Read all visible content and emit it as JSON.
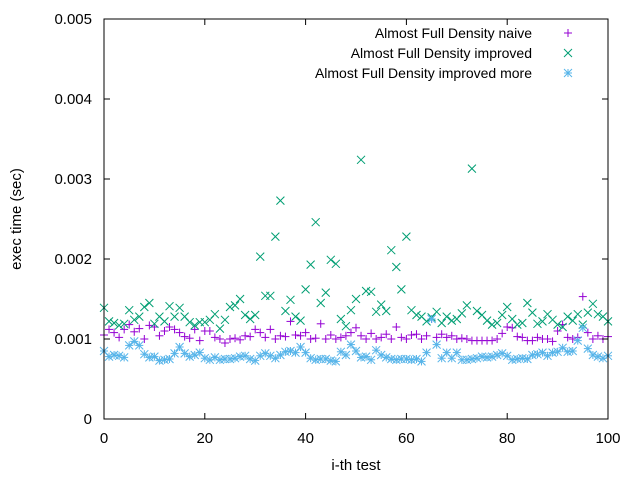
{
  "chart_data": {
    "type": "scatter",
    "title": "",
    "xlabel": "i-th test",
    "ylabel": "exec time (sec)",
    "xlim": [
      0,
      100
    ],
    "ylim": [
      0,
      0.005
    ],
    "x_ticks": [
      "0",
      "20",
      "40",
      "60",
      "80",
      "100"
    ],
    "y_ticks": [
      "0",
      "0.001",
      "0.002",
      "0.003",
      "0.004",
      "0.005"
    ],
    "x_tick_values": [
      0,
      20,
      40,
      60,
      80,
      100
    ],
    "y_tick_values": [
      0,
      0.001,
      0.002,
      0.003,
      0.004,
      0.005
    ],
    "grid": false,
    "legend_position": "top-right",
    "series": [
      {
        "name": "Almost Full Density naive",
        "marker": "plus",
        "color": "#9400d3",
        "x": [
          0,
          1,
          2,
          3,
          4,
          5,
          6,
          7,
          8,
          9,
          10,
          11,
          12,
          13,
          14,
          15,
          16,
          17,
          18,
          19,
          20,
          21,
          22,
          23,
          24,
          25,
          26,
          27,
          28,
          29,
          30,
          31,
          32,
          33,
          34,
          35,
          36,
          37,
          38,
          39,
          40,
          41,
          42,
          43,
          44,
          45,
          46,
          47,
          48,
          49,
          50,
          51,
          52,
          53,
          54,
          55,
          56,
          57,
          58,
          59,
          60,
          61,
          62,
          63,
          64,
          65,
          66,
          67,
          68,
          69,
          70,
          71,
          72,
          73,
          74,
          75,
          76,
          77,
          78,
          79,
          80,
          81,
          82,
          83,
          84,
          85,
          86,
          87,
          88,
          89,
          90,
          91,
          92,
          93,
          94,
          95,
          96,
          97,
          98,
          99,
          100
        ],
        "y": [
          0.00105,
          0.00112,
          0.00108,
          0.00102,
          0.00112,
          0.00118,
          0.00109,
          0.00113,
          0.001,
          0.00117,
          0.00115,
          0.00104,
          0.0011,
          0.00115,
          0.00112,
          0.00108,
          0.00103,
          0.00101,
          0.00112,
          0.00098,
          0.0011,
          0.0011,
          0.00102,
          0.001,
          0.00095,
          0.001,
          0.00101,
          0.00099,
          0.00104,
          0.00103,
          0.00112,
          0.00108,
          0.00102,
          0.00112,
          0.001,
          0.00104,
          0.00103,
          0.00122,
          0.00105,
          0.00104,
          0.00108,
          0.001,
          0.00101,
          0.00119,
          0.001,
          0.00105,
          0.001,
          0.00102,
          0.00104,
          0.00108,
          0.00114,
          0.00104,
          0.001,
          0.00107,
          0.001,
          0.00102,
          0.00106,
          0.001,
          0.00115,
          0.00102,
          0.001,
          0.00105,
          0.00106,
          0.001,
          0.00104,
          0.00125,
          0.00102,
          0.00106,
          0.00102,
          0.00104,
          0.001,
          0.00101,
          0.001,
          0.00098,
          0.00098,
          0.00098,
          0.00098,
          0.00098,
          0.001,
          0.00107,
          0.00115,
          0.00114,
          0.00103,
          0.00102,
          0.00098,
          0.00098,
          0.00102,
          0.001,
          0.001,
          0.00097,
          0.0011,
          0.00118,
          0.00102,
          0.001,
          0.00102,
          0.00153,
          0.00108,
          0.001,
          0.00104,
          0.001,
          0.00103
        ]
      },
      {
        "name": "Almost Full Density improved",
        "marker": "x",
        "color": "#009e73",
        "x": [
          0,
          1,
          2,
          3,
          4,
          5,
          6,
          7,
          8,
          9,
          10,
          11,
          12,
          13,
          14,
          15,
          16,
          17,
          18,
          19,
          20,
          21,
          22,
          23,
          24,
          25,
          26,
          27,
          28,
          29,
          30,
          31,
          32,
          33,
          34,
          35,
          36,
          37,
          38,
          39,
          40,
          41,
          42,
          43,
          44,
          45,
          46,
          47,
          48,
          49,
          50,
          51,
          52,
          53,
          54,
          55,
          56,
          57,
          58,
          59,
          60,
          61,
          62,
          63,
          64,
          65,
          66,
          67,
          68,
          69,
          70,
          71,
          72,
          73,
          74,
          75,
          76,
          77,
          78,
          79,
          80,
          81,
          82,
          83,
          84,
          85,
          86,
          87,
          88,
          89,
          90,
          91,
          92,
          93,
          94,
          95,
          96,
          97,
          98,
          99,
          100
        ],
        "y": [
          0.00139,
          0.00122,
          0.0012,
          0.00117,
          0.00119,
          0.00136,
          0.00124,
          0.00128,
          0.0014,
          0.00145,
          0.00119,
          0.00128,
          0.00122,
          0.00141,
          0.00128,
          0.00139,
          0.00128,
          0.00121,
          0.00117,
          0.00121,
          0.00121,
          0.00124,
          0.00131,
          0.00113,
          0.00124,
          0.0014,
          0.00142,
          0.0015,
          0.0013,
          0.00125,
          0.0013,
          0.00203,
          0.00154,
          0.00154,
          0.00228,
          0.00273,
          0.00135,
          0.00149,
          0.00128,
          0.00123,
          0.00162,
          0.00193,
          0.00246,
          0.00145,
          0.00158,
          0.00199,
          0.00194,
          0.00125,
          0.00116,
          0.00136,
          0.0015,
          0.00324,
          0.0016,
          0.00159,
          0.00134,
          0.00143,
          0.00135,
          0.00211,
          0.0019,
          0.00162,
          0.00228,
          0.00136,
          0.0013,
          0.00128,
          0.00122,
          0.00127,
          0.00134,
          0.0012,
          0.00128,
          0.00123,
          0.00125,
          0.00132,
          0.00142,
          0.00313,
          0.00135,
          0.0013,
          0.00123,
          0.00118,
          0.0012,
          0.0013,
          0.0014,
          0.00125,
          0.00118,
          0.0012,
          0.00145,
          0.00133,
          0.00119,
          0.00122,
          0.00131,
          0.00124,
          0.00118,
          0.00115,
          0.00128,
          0.00123,
          0.00131,
          0.00118,
          0.00133,
          0.00144,
          0.00131,
          0.00128,
          0.00122
        ]
      },
      {
        "name": "Almost Full Density improved more",
        "marker": "star",
        "color": "#56b4e9",
        "x": [
          0,
          1,
          2,
          3,
          4,
          5,
          6,
          7,
          8,
          9,
          10,
          11,
          12,
          13,
          14,
          15,
          16,
          17,
          18,
          19,
          20,
          21,
          22,
          23,
          24,
          25,
          26,
          27,
          28,
          29,
          30,
          31,
          32,
          33,
          34,
          35,
          36,
          37,
          38,
          39,
          40,
          41,
          42,
          43,
          44,
          45,
          46,
          47,
          48,
          49,
          50,
          51,
          52,
          53,
          54,
          55,
          56,
          57,
          58,
          59,
          60,
          61,
          62,
          63,
          64,
          65,
          66,
          67,
          68,
          69,
          70,
          71,
          72,
          73,
          74,
          75,
          76,
          77,
          78,
          79,
          80,
          81,
          82,
          83,
          84,
          85,
          86,
          87,
          88,
          89,
          90,
          91,
          92,
          93,
          94,
          95,
          96,
          97,
          98,
          99,
          100
        ],
        "y": [
          0.00085,
          0.00078,
          0.0008,
          0.00079,
          0.00077,
          0.00092,
          0.00097,
          0.00092,
          0.00081,
          0.00077,
          0.00078,
          0.00073,
          0.00074,
          0.00075,
          0.00082,
          0.0009,
          0.00082,
          0.00078,
          0.0008,
          0.00083,
          0.00076,
          0.00074,
          0.00077,
          0.00074,
          0.00075,
          0.00075,
          0.00076,
          0.00078,
          0.00079,
          0.00075,
          0.00073,
          0.00079,
          0.00082,
          0.00079,
          0.00076,
          0.0008,
          0.00084,
          0.00085,
          0.00083,
          0.0009,
          0.00083,
          0.00076,
          0.00074,
          0.00075,
          0.00075,
          0.00073,
          0.00072,
          0.00084,
          0.0008,
          0.00093,
          0.00085,
          0.00077,
          0.00078,
          0.00074,
          0.00086,
          0.0008,
          0.00077,
          0.00075,
          0.00074,
          0.00075,
          0.00075,
          0.00074,
          0.00075,
          0.00072,
          0.00083,
          0.00125,
          0.00093,
          0.00076,
          0.00083,
          0.00076,
          0.00083,
          0.00074,
          0.00074,
          0.00075,
          0.00076,
          0.00078,
          0.00077,
          0.00078,
          0.0008,
          0.00082,
          0.00079,
          0.00074,
          0.00075,
          0.00076,
          0.00075,
          0.0008,
          0.00081,
          0.00083,
          0.00079,
          0.00083,
          0.00084,
          0.00089,
          0.00084,
          0.00085,
          0.00098,
          0.00114,
          0.00088,
          0.0008,
          0.00078,
          0.00076,
          0.00079
        ]
      }
    ]
  }
}
